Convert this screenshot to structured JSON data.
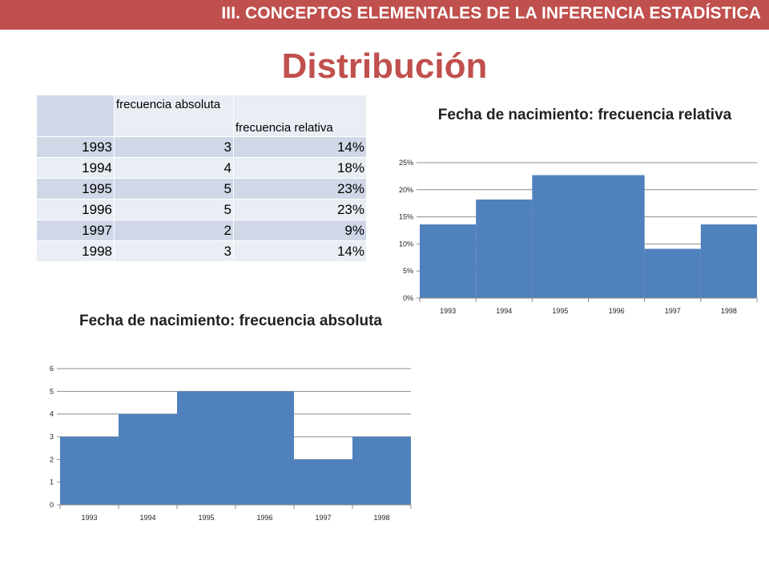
{
  "header": {
    "banner_text": "III. CONCEPTOS ELEMENTALES DE LA INFERENCIA ESTADÍSTICA",
    "title": "Distribución"
  },
  "table": {
    "headers": [
      "",
      "frecuencia absoluta",
      "frecuencia relativa"
    ],
    "rows": [
      [
        "1993",
        "3",
        "14%"
      ],
      [
        "1994",
        "4",
        "18%"
      ],
      [
        "1995",
        "5",
        "23%"
      ],
      [
        "1996",
        "5",
        "23%"
      ],
      [
        "1997",
        "2",
        "9%"
      ],
      [
        "1998",
        "3",
        "14%"
      ]
    ]
  },
  "colors": {
    "accent": "#c0504d",
    "bar": "#4f81bd",
    "row_dark": "#d0d8e8",
    "row_light": "#e9edf4"
  },
  "chart_data": [
    {
      "type": "bar",
      "title": "Fecha de nacimiento: frecuencia relativa",
      "categories": [
        "1993",
        "1994",
        "1995",
        "1996",
        "1997",
        "1998"
      ],
      "values": [
        13.6,
        18.2,
        22.7,
        22.7,
        9.1,
        13.6
      ],
      "ylim": [
        0,
        25
      ],
      "yticks": [
        "0%",
        "5%",
        "10%",
        "15%",
        "20%",
        "25%"
      ],
      "grid": true,
      "legend": "none"
    },
    {
      "type": "bar",
      "title": "Fecha de nacimiento: frecuencia absoluta",
      "categories": [
        "1993",
        "1994",
        "1995",
        "1996",
        "1997",
        "1998"
      ],
      "values": [
        3,
        4,
        5,
        5,
        2,
        3
      ],
      "ylim": [
        0,
        6
      ],
      "yticks": [
        "0",
        "1",
        "2",
        "3",
        "4",
        "5",
        "6"
      ],
      "grid": true,
      "legend": "none"
    }
  ]
}
